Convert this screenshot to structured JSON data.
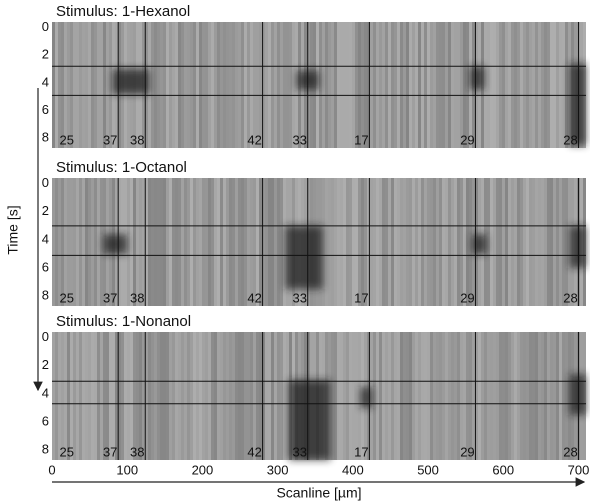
{
  "chart_data": [
    {
      "type": "kymograph",
      "title": "Stimulus: 1-Hexanol",
      "xlim": [
        0,
        710
      ],
      "ylim": [
        -0.4,
        8.7
      ],
      "yticks": [
        0,
        2,
        4,
        6,
        8
      ],
      "stimulus": [
        2.8,
        4.9
      ],
      "cells": [
        {
          "label": "25",
          "x": 10
        },
        {
          "label": "37",
          "x": 88
        },
        {
          "label": "38",
          "x": 124
        },
        {
          "label": "42",
          "x": 280
        },
        {
          "label": "33",
          "x": 340
        },
        {
          "label": "17",
          "x": 422
        },
        {
          "label": "29",
          "x": 563
        },
        {
          "label": "28",
          "x": 700
        }
      ],
      "responses": [
        {
          "x0": 80,
          "x1": 130,
          "t0": 3,
          "t1": 4.8
        },
        {
          "x0": 325,
          "x1": 355,
          "t0": 3.1,
          "t1": 4.5
        },
        {
          "x0": 555,
          "x1": 575,
          "t0": 2.8,
          "t1": 4.5
        },
        {
          "x0": 688,
          "x1": 710,
          "t0": 2.6,
          "t1": 8.5
        }
      ]
    },
    {
      "type": "kymograph",
      "title": "Stimulus: 1-Octanol",
      "xlim": [
        0,
        710
      ],
      "ylim": [
        -0.4,
        8.7
      ],
      "yticks": [
        0,
        2,
        4,
        6,
        8
      ],
      "stimulus": [
        3,
        5.1
      ],
      "cells": [
        {
          "label": "25",
          "x": 10
        },
        {
          "label": "37",
          "x": 88
        },
        {
          "label": "38",
          "x": 124
        },
        {
          "label": "42",
          "x": 280
        },
        {
          "label": "33",
          "x": 340
        },
        {
          "label": "17",
          "x": 422
        },
        {
          "label": "29",
          "x": 563
        },
        {
          "label": "28",
          "x": 700
        }
      ],
      "responses": [
        {
          "x0": 68,
          "x1": 100,
          "t0": 3.6,
          "t1": 5
        },
        {
          "x0": 310,
          "x1": 360,
          "t0": 3,
          "t1": 7.5
        },
        {
          "x0": 558,
          "x1": 578,
          "t0": 3.6,
          "t1": 5
        },
        {
          "x0": 688,
          "x1": 710,
          "t0": 3,
          "t1": 6
        }
      ]
    },
    {
      "type": "kymograph",
      "title": "Stimulus: 1-Nonanol",
      "xlim": [
        0,
        710
      ],
      "ylim": [
        -0.4,
        8.7
      ],
      "yticks": [
        0,
        2,
        4,
        6,
        8
      ],
      "stimulus": [
        3.1,
        4.7
      ],
      "cells": [
        {
          "label": "25",
          "x": 10
        },
        {
          "label": "37",
          "x": 88
        },
        {
          "label": "38",
          "x": 124
        },
        {
          "label": "42",
          "x": 280
        },
        {
          "label": "33",
          "x": 340
        },
        {
          "label": "17",
          "x": 422
        },
        {
          "label": "29",
          "x": 563
        },
        {
          "label": "28",
          "x": 700
        }
      ],
      "responses": [
        {
          "x0": 315,
          "x1": 370,
          "t0": 3,
          "t1": 8.7
        },
        {
          "x0": 410,
          "x1": 426,
          "t0": 3.5,
          "t1": 5
        },
        {
          "x0": 688,
          "x1": 710,
          "t0": 2.6,
          "t1": 5.5
        }
      ],
      "xticks": [
        0,
        100,
        200,
        300,
        400,
        500,
        600,
        700
      ],
      "xlabel": "Scanline [µm]"
    }
  ],
  "ylabel": "Time [s]"
}
